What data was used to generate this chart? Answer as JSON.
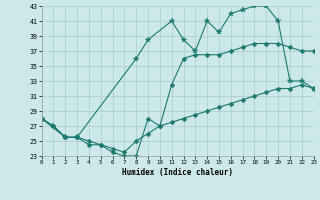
{
  "xlabel": "Humidex (Indice chaleur)",
  "bg_color": "#cce8e8",
  "grid_color": "#aacccc",
  "line_color": "#1a7a6e",
  "x_min": 0,
  "x_max": 23,
  "y_min": 23,
  "y_max": 43,
  "yticks": [
    23,
    25,
    27,
    29,
    31,
    33,
    35,
    37,
    39,
    41,
    43
  ],
  "xticks": [
    0,
    1,
    2,
    3,
    4,
    5,
    6,
    7,
    8,
    9,
    10,
    11,
    12,
    13,
    14,
    15,
    16,
    17,
    18,
    19,
    20,
    21,
    22,
    23
  ],
  "line1_x": [
    0,
    1,
    2,
    3,
    8,
    9,
    11,
    12,
    13,
    14,
    15,
    16,
    17,
    18,
    19,
    20,
    21,
    22,
    23
  ],
  "line1_y": [
    28,
    27,
    25.5,
    25.5,
    36,
    38.5,
    41,
    38.5,
    37,
    41,
    39.5,
    42,
    42.5,
    43,
    43,
    41,
    33,
    33,
    32
  ],
  "line2_x": [
    0,
    2,
    3,
    4,
    5,
    6,
    7,
    8,
    9,
    10,
    11,
    12,
    13,
    14,
    15,
    16,
    17,
    18,
    19,
    20,
    21,
    22,
    23
  ],
  "line2_y": [
    28,
    25.5,
    25.5,
    24.5,
    24.5,
    23.5,
    23,
    23,
    28,
    27,
    32.5,
    36,
    36.5,
    36.5,
    36.5,
    37,
    37.5,
    38,
    38,
    38,
    37.5,
    37,
    37
  ],
  "line3_x": [
    0,
    1,
    2,
    3,
    4,
    5,
    6,
    7,
    8,
    9,
    10,
    11,
    12,
    13,
    14,
    15,
    16,
    17,
    18,
    19,
    20,
    21,
    22,
    23
  ],
  "line3_y": [
    28,
    27,
    25.5,
    25.5,
    25,
    24.5,
    24,
    23.5,
    25,
    26,
    27,
    27.5,
    28,
    28.5,
    29,
    29.5,
    30,
    30.5,
    31,
    31.5,
    32,
    32,
    32.5,
    32
  ]
}
